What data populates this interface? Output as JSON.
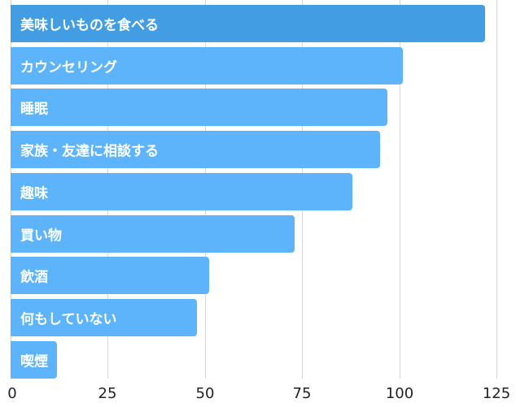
{
  "chart_data": {
    "type": "bar",
    "orientation": "horizontal",
    "title": "",
    "xlabel": "",
    "ylabel": "",
    "xlim": [
      0,
      125
    ],
    "xticks": [
      0,
      25,
      50,
      75,
      100,
      125
    ],
    "grid": true,
    "legend": null,
    "categories": [
      "美味しいものを食べる",
      "カウンセリング",
      "睡眠",
      "家族・友達に相談する",
      "趣味",
      "買い物",
      "飲酒",
      "何もしていない",
      "喫煙"
    ],
    "values": [
      122,
      101,
      97,
      95,
      88,
      73,
      51,
      48,
      12
    ],
    "colors": [
      "#429de3",
      "#5db4fb",
      "#5db4fb",
      "#5db4fb",
      "#5db4fb",
      "#5db4fb",
      "#5db4fb",
      "#5db4fb",
      "#5db4fb"
    ]
  },
  "axis": {
    "ticks": [
      "0",
      "25",
      "50",
      "75",
      "100",
      "125"
    ]
  }
}
